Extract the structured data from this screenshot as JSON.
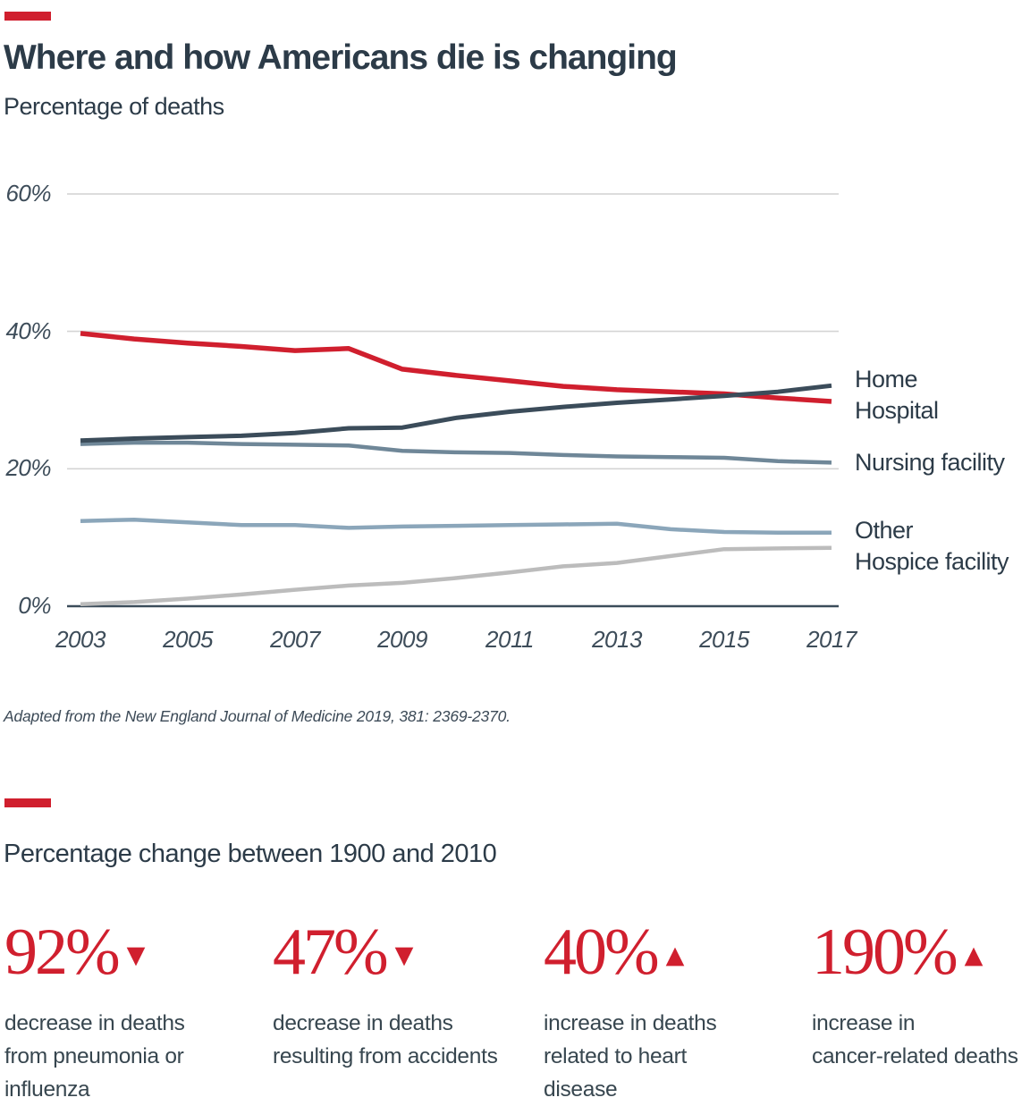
{
  "accent_color": "#d01f2e",
  "header": {
    "title": "Where and how Americans die is changing",
    "subtitle": "Percentage of deaths"
  },
  "chart_data": {
    "type": "line",
    "title": "Where and how Americans die is changing",
    "ylabel": "Percentage of deaths",
    "ylim": [
      0,
      60
    ],
    "grid": true,
    "legend_position": "right",
    "x": [
      2003,
      2004,
      2005,
      2006,
      2007,
      2008,
      2009,
      2010,
      2011,
      2012,
      2013,
      2014,
      2015,
      2016,
      2017
    ],
    "x_tick_labels": [
      "2003",
      "2005",
      "2007",
      "2009",
      "2011",
      "2013",
      "2015",
      "2017"
    ],
    "y_tick_labels": [
      "60%",
      "40%",
      "20%",
      "0%"
    ],
    "legend": [
      "Home",
      "Hospital",
      "Nursing facility",
      "Other",
      "Hospice facility"
    ],
    "series": [
      {
        "name": "Home",
        "color": "#3b4c5a",
        "values": [
          24.1,
          24.4,
          24.6,
          24.8,
          25.2,
          25.9,
          26.0,
          27.4,
          28.3,
          29.0,
          29.6,
          30.1,
          30.6,
          31.2,
          32.1
        ]
      },
      {
        "name": "Hospital",
        "color": "#d01f2e",
        "values": [
          39.7,
          38.9,
          38.3,
          37.8,
          37.2,
          37.5,
          34.5,
          33.6,
          32.8,
          32.0,
          31.5,
          31.2,
          30.9,
          30.3,
          29.8
        ]
      },
      {
        "name": "Nursing facility",
        "color": "#6f8798",
        "values": [
          23.6,
          23.8,
          23.8,
          23.6,
          23.5,
          23.4,
          22.6,
          22.4,
          22.3,
          22.0,
          21.8,
          21.7,
          21.6,
          21.1,
          20.9
        ]
      },
      {
        "name": "Other",
        "color": "#8ba6ba",
        "values": [
          12.4,
          12.6,
          12.2,
          11.8,
          11.8,
          11.4,
          11.6,
          11.7,
          11.8,
          11.9,
          12.0,
          11.2,
          10.8,
          10.7,
          10.7
        ]
      },
      {
        "name": "Hospice facility",
        "color": "#bcbcbc",
        "values": [
          0.3,
          0.6,
          1.1,
          1.7,
          2.4,
          3.0,
          3.4,
          4.1,
          4.9,
          5.8,
          6.3,
          7.3,
          8.3,
          8.4,
          8.5
        ]
      }
    ]
  },
  "source_note": "Adapted from the New England Journal of Medicine 2019, 381: 2369-2370.",
  "stats_section": {
    "title": "Percentage change between 1900 and 2010",
    "stats": [
      {
        "value": "92%",
        "direction": "down",
        "caption": "decrease in deaths from pneumonia or influenza",
        "lines": [
          "decrease in deaths",
          "from pneumonia or",
          "influenza"
        ]
      },
      {
        "value": "47%",
        "direction": "down",
        "caption": "decrease in deaths resulting from accidents",
        "lines": [
          "decrease in deaths",
          "resulting from accidents"
        ]
      },
      {
        "value": "40%",
        "direction": "up",
        "caption": "increase in deaths related to heart disease",
        "lines": [
          "increase in deaths",
          "related to heart",
          "disease"
        ]
      },
      {
        "value": "190%",
        "direction": "up",
        "caption": "increase in cancer-related deaths",
        "lines": [
          "increase in",
          "cancer-related deaths"
        ]
      }
    ]
  }
}
